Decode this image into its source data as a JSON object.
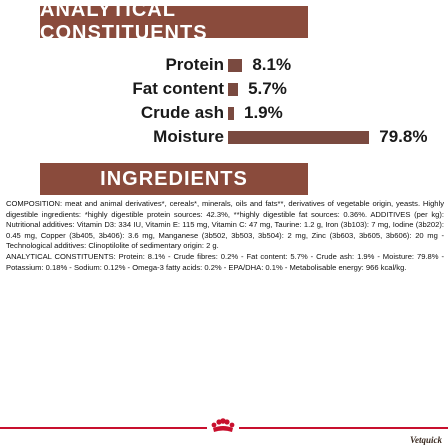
{
  "headings": {
    "analytical": "ANALYTICAL CONSTITUENTS",
    "ingredients": "INGREDIENTS"
  },
  "constituents": [
    {
      "label": "Protein",
      "value": "8.1%",
      "percent": 8.1
    },
    {
      "label": "Fat content",
      "value": "5.7%",
      "percent": 5.7
    },
    {
      "label": "Crude ash",
      "value": "1.9%",
      "percent": 1.9
    },
    {
      "label": "Moisture",
      "value": "79.8%",
      "percent": 79.8
    }
  ],
  "ingredients": {
    "composition": "COMPOSITION: meat and animal derivatives*, cereals*, minerals, oils and fats**, derivatives of vegetable origin, yeasts. Highly digestible ingredients: *highly digestible protein sources: 42.3%, **highly digestible fat sources: 0.36%. ADDITIVES (per kg): Nutritional additives: Vitamin D3: 334 IU, Vitamin E: 115 mg, Vitamin C: 47 mg, Taurine: 1.2 g, Iron (3b103): 7 mg, Iodine (3b202): 0.45 mg, Copper (3b405, 3b406): 3.6 mg, Manganese (3b502, 3b503, 3b504): 2 mg, Zinc (3b603, 3b605, 3b606): 20 mg - Technological additives: Clinoptilolite of sedimentary origin: 2 g.",
    "analytical": "ANALYTICAL CONSTITUENTS: Protein: 8.1% - Crude fibres: 0.2% - Fat content: 5.7% - Crude ash: 1.9% - Moisture: 79.8% - Potassium: 0.18% - Sodium: 0.12% - Omega-3 fatty acids: 0.2% - EPA/DHA: 0.1% - Metabolisable energy: 966 kcal/kg."
  },
  "watermark": "Vetquick",
  "colors": {
    "banner": "#8a4b3c",
    "bar": "#7a4a40",
    "footer_line": "#c8102e"
  },
  "icons": {
    "brand_logo": "royal-canin-crown-logo"
  }
}
